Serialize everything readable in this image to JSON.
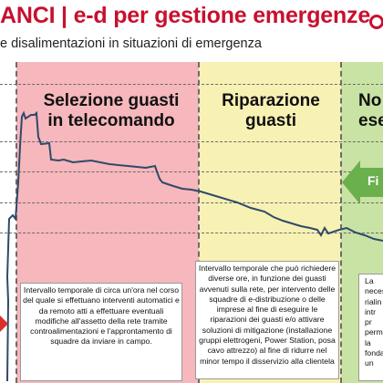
{
  "header": {
    "title": "ANCI | e-d per gestione emergenze",
    "subtitle": "e disalimentazioni in situazioni di emergenza"
  },
  "phases": [
    {
      "title": "Selezione guasti\nin telecomando",
      "color": "#f6b7bd"
    },
    {
      "title": "Riparazione\nguasti",
      "color": "#f8f1b4"
    },
    {
      "title": "No\nese",
      "color": "#c9e3a4"
    }
  ],
  "descriptions": {
    "pink": "Intervallo temporale di circa un'ora nel corso del quale si effettuano interventi automatici e da remoto atti a effettuare eventuali modifiche all'assetto della rete tramite controalimentazioni e l'approntamento di squadre da inviare in campo.",
    "yellow": "Intervallo temporale che può richiedere diverse ore, in funzione dei guasti avvenuti sulla rete, per intervento delle squadre di e-distribuzione o delle imprese al fine di eseguire le riparazioni dei guasti e/o attivare soluzioni di mitigazione (installazione gruppi elettrogeni, Power Station, posa cavo attrezzo) al fine di ridurre nel minor tempo il disservizio alla clientela",
    "green": "La\nneces\nrialin\nintr\npr\nperma\nla\nfonda\nun"
  },
  "arrow": {
    "label": "Fi",
    "color": "#6ab04c"
  },
  "colors": {
    "title": "#c8102e",
    "curve": "#2e4a6a",
    "curve_highlight": "#c8102e"
  }
}
